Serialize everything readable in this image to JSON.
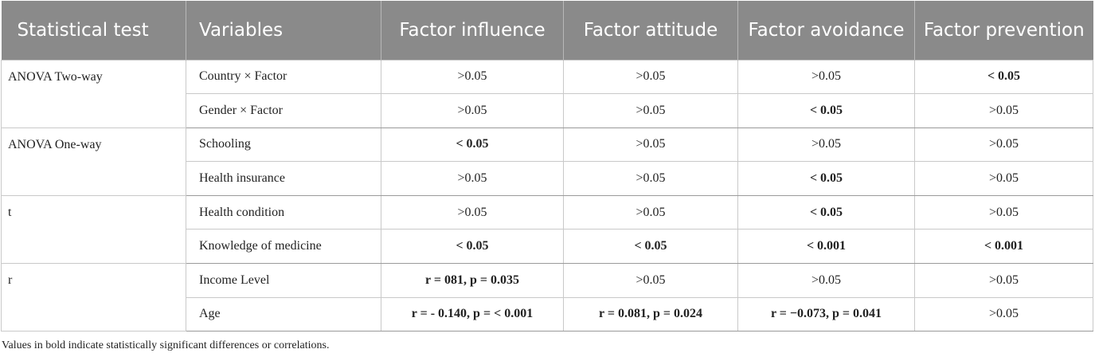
{
  "headers": [
    "Statistical test",
    "Variables",
    "Factor influence",
    "Factor attitude",
    "Factor avoidance",
    "Factor prevention"
  ],
  "groups": [
    {
      "test": "ANOVA Two-way",
      "rows": [
        {
          "variable": "Country × Factor",
          "values": [
            ">0.05",
            ">0.05",
            ">0.05",
            "< 0.05"
          ],
          "significant": [
            false,
            false,
            false,
            true
          ]
        },
        {
          "variable": "Gender × Factor",
          "values": [
            ">0.05",
            ">0.05",
            "< 0.05",
            ">0.05"
          ],
          "significant": [
            false,
            false,
            true,
            false
          ]
        }
      ]
    },
    {
      "test": "ANOVA One-way",
      "rows": [
        {
          "variable": "Schooling",
          "values": [
            "< 0.05",
            ">0.05",
            ">0.05",
            ">0.05"
          ],
          "significant": [
            true,
            false,
            false,
            false
          ]
        },
        {
          "variable": "Health insurance",
          "values": [
            ">0.05",
            ">0.05",
            "< 0.05",
            ">0.05"
          ],
          "significant": [
            false,
            false,
            true,
            false
          ]
        }
      ]
    },
    {
      "test": "t",
      "rows": [
        {
          "variable": "Health condition",
          "values": [
            ">0.05",
            ">0.05",
            "< 0.05",
            ">0.05"
          ],
          "significant": [
            false,
            false,
            true,
            false
          ]
        },
        {
          "variable": "Knowledge of medicine",
          "values": [
            "< 0.05",
            "< 0.05",
            "< 0.001",
            "< 0.001"
          ],
          "significant": [
            true,
            true,
            true,
            true
          ]
        }
      ]
    },
    {
      "test": "r",
      "rows": [
        {
          "variable": "Income Level",
          "values": [
            "r = 081, p = 0.035",
            ">0.05",
            ">0.05",
            ">0.05"
          ],
          "significant": [
            true,
            false,
            false,
            false
          ]
        },
        {
          "variable": "Age",
          "values": [
            "r = - 0.140, p = < 0.001",
            "r = 0.081, p = 0.024",
            "r = −0.073, p = 0.041",
            ">0.05"
          ],
          "significant": [
            true,
            true,
            true,
            false
          ]
        }
      ]
    }
  ],
  "footnote": "Values in bold indicate statistically significant differences or correlations."
}
